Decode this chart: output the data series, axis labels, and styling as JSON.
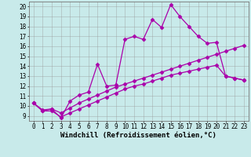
{
  "background_color": "#c8eaea",
  "plot_bg_color": "#c8eaea",
  "line_color": "#aa00aa",
  "marker": "D",
  "markersize": 2.5,
  "linewidth": 0.9,
  "xlabel": "Windchill (Refroidissement éolien,°C)",
  "xlabel_fontsize": 6.5,
  "xlim": [
    -0.5,
    23.5
  ],
  "ylim": [
    8.5,
    20.5
  ],
  "xticks": [
    0,
    1,
    2,
    3,
    4,
    5,
    6,
    7,
    8,
    9,
    10,
    11,
    12,
    13,
    14,
    15,
    16,
    17,
    18,
    19,
    20,
    21,
    22,
    23
  ],
  "yticks": [
    9,
    10,
    11,
    12,
    13,
    14,
    15,
    16,
    17,
    18,
    19,
    20
  ],
  "grid_color": "#999999",
  "tick_fontsize": 5.5,
  "series1": [
    10.3,
    9.5,
    9.7,
    8.8,
    10.5,
    11.1,
    11.4,
    14.2,
    12.0,
    12.1,
    16.7,
    17.0,
    16.7,
    18.7,
    17.9,
    20.2,
    19.0,
    18.0,
    17.0,
    16.3,
    16.4,
    13.0,
    12.8,
    12.6
  ],
  "series2": [
    10.3,
    9.6,
    9.7,
    9.3,
    9.8,
    10.3,
    10.7,
    11.1,
    11.5,
    11.9,
    12.2,
    12.5,
    12.8,
    13.1,
    13.4,
    13.7,
    14.0,
    14.3,
    14.6,
    14.9,
    15.2,
    15.5,
    15.8,
    16.1
  ],
  "series3": [
    10.3,
    9.5,
    9.5,
    8.9,
    9.3,
    9.7,
    10.1,
    10.5,
    10.9,
    11.3,
    11.7,
    12.0,
    12.2,
    12.5,
    12.8,
    13.1,
    13.3,
    13.5,
    13.7,
    13.9,
    14.1,
    13.0,
    12.8,
    12.6
  ]
}
